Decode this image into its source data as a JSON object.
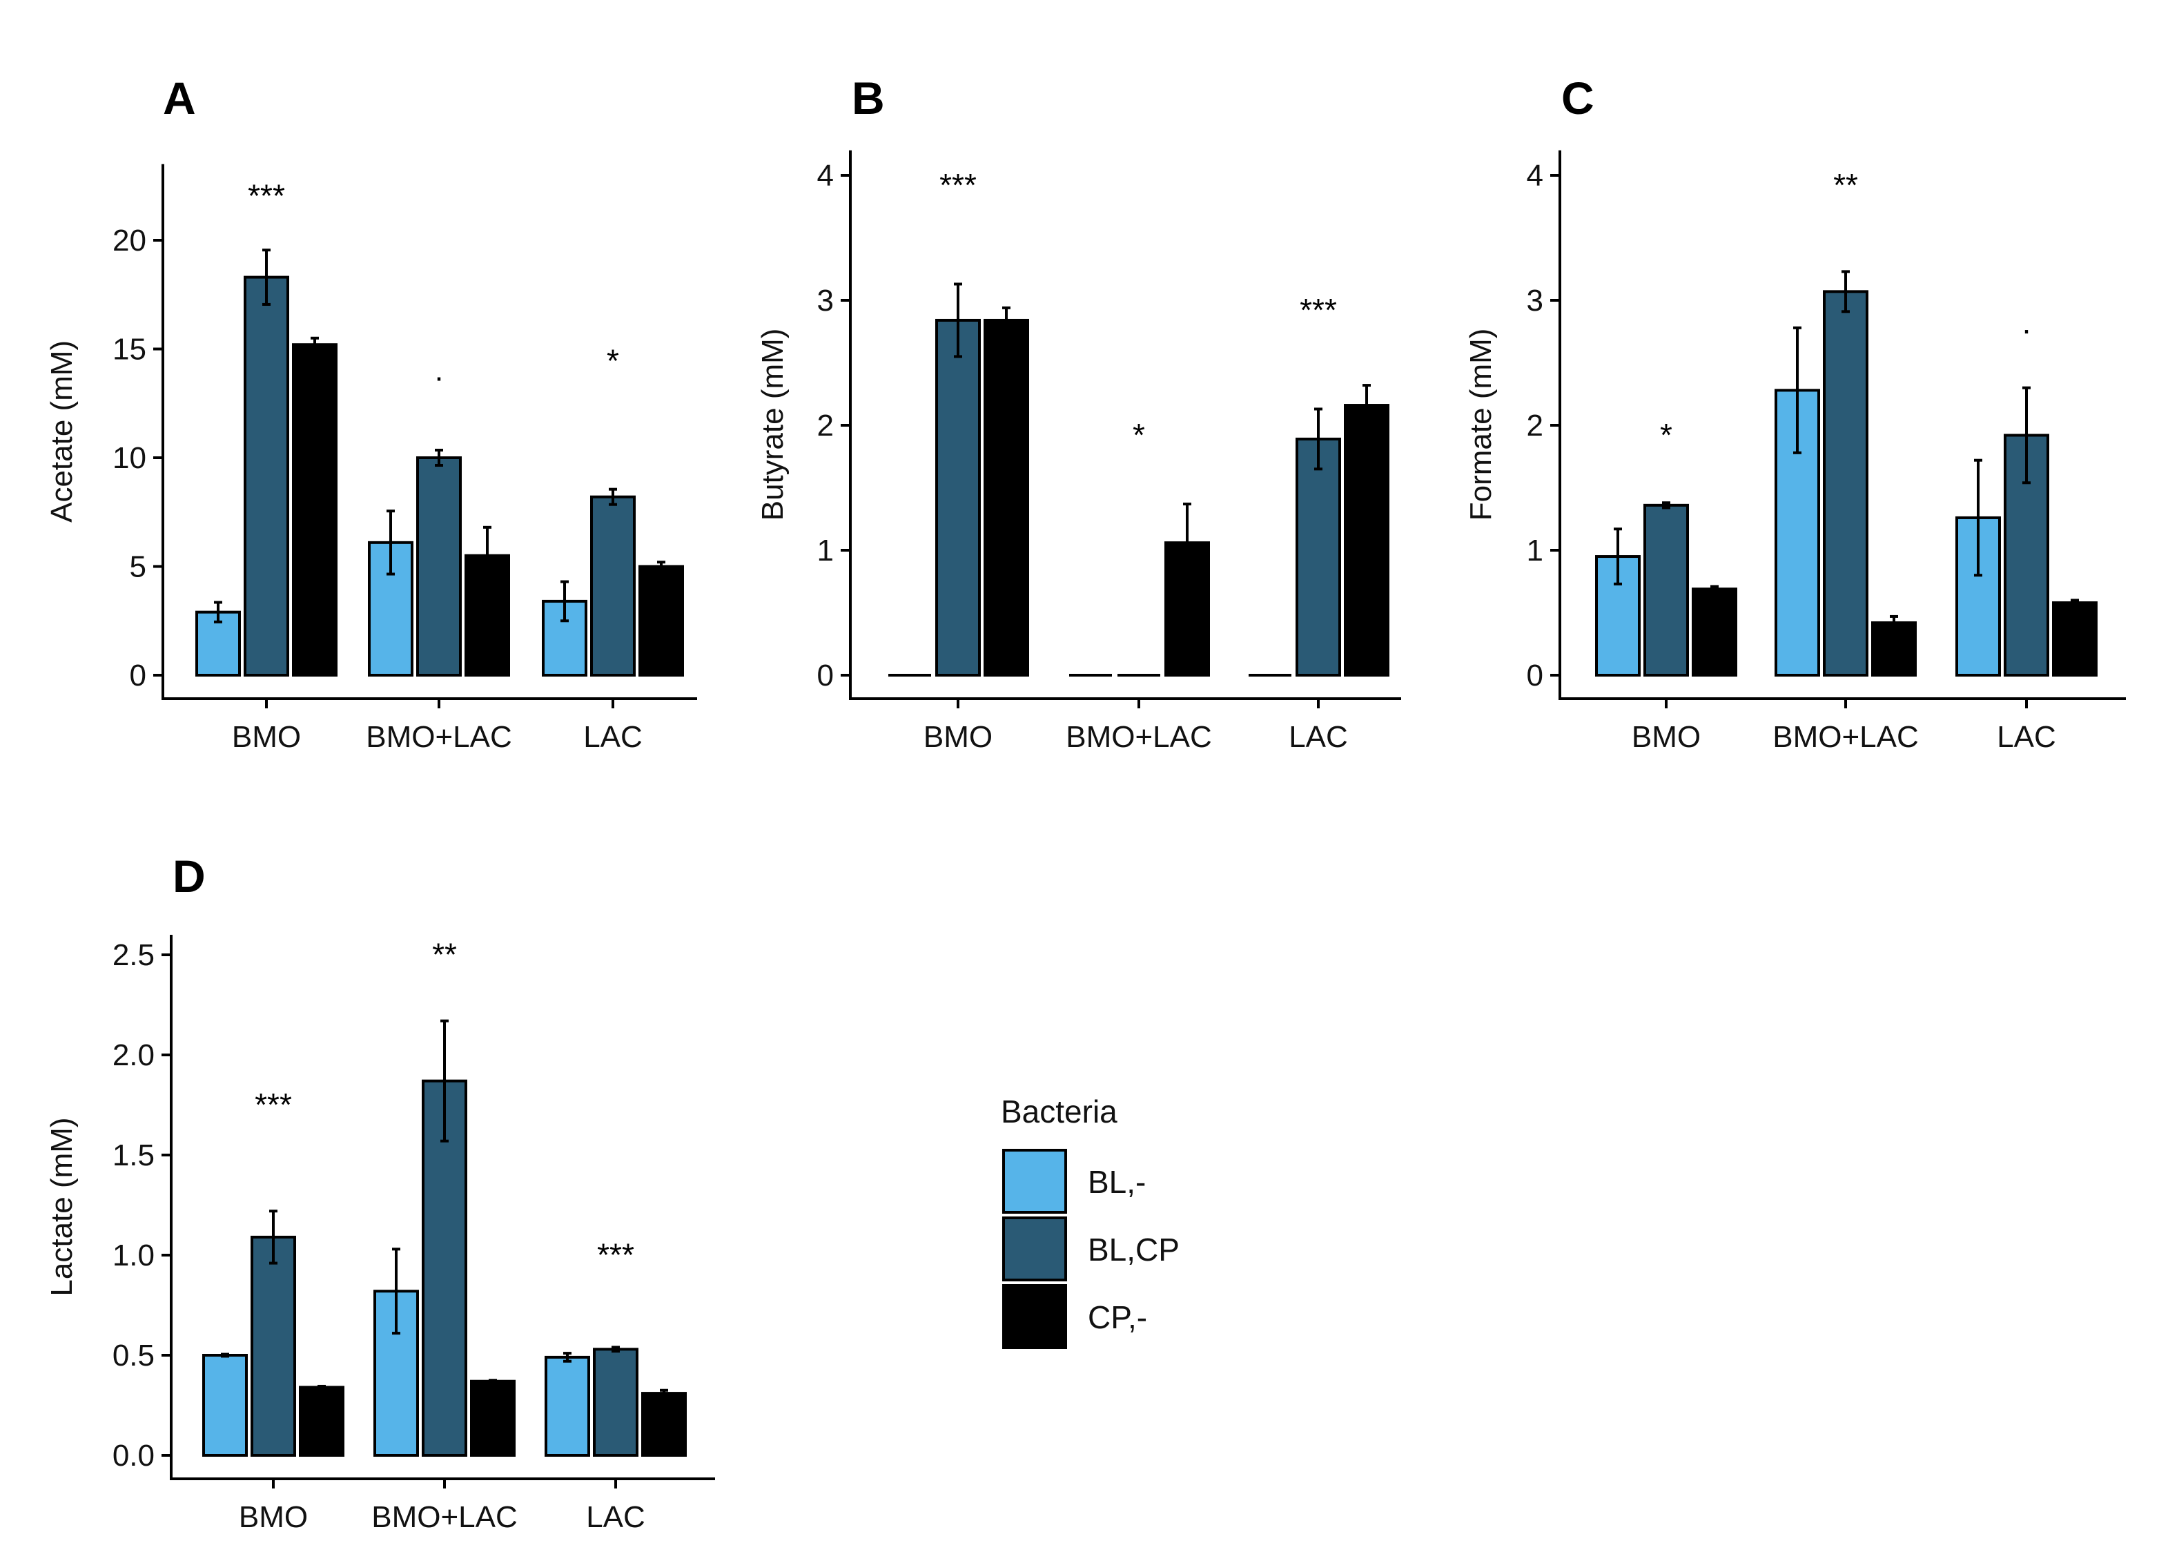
{
  "colors": {
    "BL,-": "#56b4e9",
    "BL,CP": "#2a5a75",
    "CP,-": "#000000"
  },
  "legend": {
    "title": "Bacteria",
    "entries": [
      "BL,-",
      "BL,CP",
      "CP,-"
    ]
  },
  "chart_data": [
    {
      "panel": "A",
      "type": "bar",
      "title": "A",
      "xlabel": "",
      "ylabel": "Acetate (mM)",
      "ylim": [
        0,
        23.5
      ],
      "yticks": [
        0,
        5,
        10,
        15,
        20
      ],
      "ytick_labels": [
        "0",
        "5",
        "10",
        "15",
        "20"
      ],
      "categories": [
        "BMO",
        "BMO+LAC",
        "LAC"
      ],
      "series": [
        {
          "name": "BL,-",
          "values": [
            2.9,
            6.1,
            3.4
          ],
          "errors": [
            0.45,
            1.45,
            0.9
          ]
        },
        {
          "name": "BL,CP",
          "values": [
            18.3,
            10.0,
            8.2
          ],
          "errors": [
            1.25,
            0.35,
            0.35
          ]
        },
        {
          "name": "CP,-",
          "values": [
            15.2,
            5.5,
            5.0
          ],
          "errors": [
            0.3,
            1.3,
            0.2
          ]
        }
      ],
      "annotations": [
        {
          "category": "BMO",
          "text": "***",
          "y": 22.5
        },
        {
          "category": "BMO+LAC",
          "text": ".",
          "y": 14.5
        },
        {
          "category": "LAC",
          "text": "*",
          "y": 14.9
        }
      ]
    },
    {
      "panel": "B",
      "type": "bar",
      "title": "B",
      "xlabel": "",
      "ylabel": "Butyrate (mM)",
      "ylim": [
        0,
        4.2
      ],
      "yticks": [
        0,
        1,
        2,
        3,
        4
      ],
      "ytick_labels": [
        "0",
        "1",
        "2",
        "3",
        "4"
      ],
      "categories": [
        "BMO",
        "BMO+LAC",
        "LAC"
      ],
      "series": [
        {
          "name": "BL,-",
          "values": [
            0,
            0,
            0
          ],
          "errors": [
            0,
            0,
            0
          ]
        },
        {
          "name": "BL,CP",
          "values": [
            2.84,
            0,
            1.89
          ],
          "errors": [
            0.29,
            0,
            0.24
          ]
        },
        {
          "name": "CP,-",
          "values": [
            2.84,
            1.06,
            2.16
          ],
          "errors": [
            0.1,
            0.31,
            0.16
          ]
        }
      ],
      "annotations": [
        {
          "category": "BMO",
          "text": "***",
          "y": 4.0
        },
        {
          "category": "BMO+LAC",
          "text": "*",
          "y": 2.0
        },
        {
          "category": "LAC",
          "text": "***",
          "y": 3.0
        }
      ]
    },
    {
      "panel": "C",
      "type": "bar",
      "title": "C",
      "xlabel": "",
      "ylabel": "Formate (mM)",
      "ylim": [
        0,
        4.2
      ],
      "yticks": [
        0,
        1,
        2,
        3,
        4
      ],
      "ytick_labels": [
        "0",
        "1",
        "2",
        "3",
        "4"
      ],
      "categories": [
        "BMO",
        "BMO+LAC",
        "LAC"
      ],
      "series": [
        {
          "name": "BL,-",
          "values": [
            0.95,
            2.28,
            1.26
          ],
          "errors": [
            0.22,
            0.5,
            0.46
          ]
        },
        {
          "name": "BL,CP",
          "values": [
            1.36,
            3.07,
            1.92
          ],
          "errors": [
            0.02,
            0.16,
            0.38
          ]
        },
        {
          "name": "CP,-",
          "values": [
            0.69,
            0.42,
            0.58
          ],
          "errors": [
            0.02,
            0.05,
            0.02
          ]
        }
      ],
      "annotations": [
        {
          "category": "BMO",
          "text": "*",
          "y": 2.0
        },
        {
          "category": "BMO+LAC",
          "text": "**",
          "y": 4.0
        },
        {
          "category": "LAC",
          "text": ".",
          "y": 2.9
        }
      ]
    },
    {
      "panel": "D",
      "type": "bar",
      "title": "D",
      "xlabel": "",
      "ylabel": "Lactate (mM)",
      "ylim": [
        0,
        2.6
      ],
      "yticks": [
        0,
        0.5,
        1.0,
        1.5,
        2.0,
        2.5
      ],
      "ytick_labels": [
        "0.0",
        "0.5",
        "1.0",
        "1.5",
        "2.0",
        "2.5"
      ],
      "categories": [
        "BMO",
        "BMO+LAC",
        "LAC"
      ],
      "series": [
        {
          "name": "BL,-",
          "values": [
            0.5,
            0.82,
            0.49
          ],
          "errors": [
            0.005,
            0.21,
            0.02
          ]
        },
        {
          "name": "BL,CP",
          "values": [
            1.09,
            1.87,
            0.53
          ],
          "errors": [
            0.13,
            0.3,
            0.01
          ]
        },
        {
          "name": "CP,-",
          "values": [
            0.34,
            0.37,
            0.31
          ],
          "errors": [
            0.005,
            0.005,
            0.015
          ]
        }
      ],
      "annotations": [
        {
          "category": "BMO",
          "text": "***",
          "y": 1.8
        },
        {
          "category": "BMO+LAC",
          "text": "**",
          "y": 2.55
        },
        {
          "category": "LAC",
          "text": "***",
          "y": 1.05
        }
      ]
    }
  ]
}
